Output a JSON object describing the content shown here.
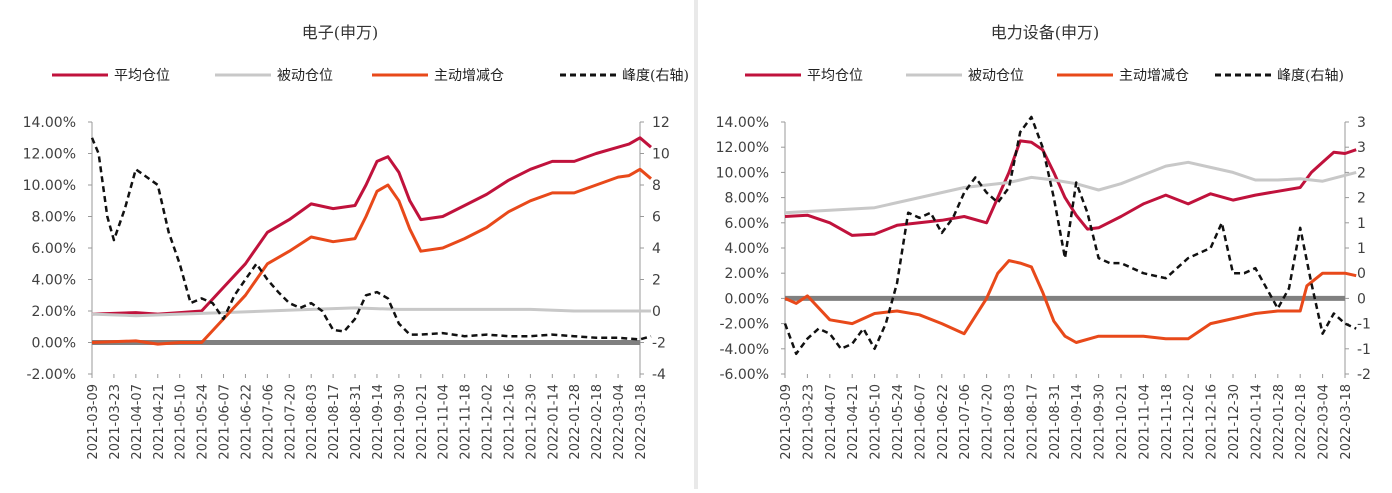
{
  "chart_data": [
    {
      "type": "line",
      "title": "电子(申万)",
      "legend": [
        "平均仓位",
        "被动仓位",
        "主动增减仓",
        "峰度(右轴)"
      ],
      "legend_placement": "top",
      "grid": false,
      "ylim_left": [
        -0.02,
        0.14
      ],
      "ylim_right": [
        -4,
        12
      ],
      "yticks_left": [
        "-2.00%",
        "0.00%",
        "2.00%",
        "4.00%",
        "6.00%",
        "8.00%",
        "10.00%",
        "12.00%",
        "14.00%"
      ],
      "yticks_right": [
        "-4",
        "-2",
        "0",
        "2",
        "4",
        "6",
        "8",
        "10",
        "12"
      ],
      "x_ticks": [
        "2021-03-09",
        "2021-03-23",
        "2021-04-07",
        "2021-04-21",
        "2021-05-10",
        "2021-05-24",
        "2021-06-07",
        "2021-06-22",
        "2021-07-06",
        "2021-07-20",
        "2021-08-03",
        "2021-08-17",
        "2021-08-31",
        "2021-09-14",
        "2021-09-30",
        "2021-10-21",
        "2021-11-04",
        "2021-11-18",
        "2021-12-02",
        "2021-12-16",
        "2021-12-30",
        "2022-01-14",
        "2022-01-28",
        "2022-02-18",
        "2022-03-04",
        "2022-03-18"
      ],
      "series": [
        {
          "name": "平均仓位",
          "axis": "left",
          "color": "#c0123c",
          "t": [
            0,
            2,
            3,
            4,
            5,
            6,
            7,
            8,
            9,
            10,
            11,
            12,
            12.5,
            13,
            13.5,
            14,
            14.5,
            15,
            16,
            17,
            18,
            19,
            20,
            21,
            22,
            23,
            24,
            24.5,
            25,
            25.5
          ],
          "values": [
            0.018,
            0.019,
            0.018,
            0.019,
            0.02,
            0.035,
            0.05,
            0.07,
            0.078,
            0.088,
            0.085,
            0.087,
            0.1,
            0.115,
            0.118,
            0.108,
            0.09,
            0.078,
            0.08,
            0.087,
            0.094,
            0.103,
            0.11,
            0.115,
            0.115,
            0.12,
            0.124,
            0.126,
            0.13,
            0.124
          ]
        },
        {
          "name": "被动仓位",
          "axis": "left",
          "color": "#c8c8c8",
          "t": [
            0,
            2,
            4,
            6,
            8,
            10,
            12,
            14,
            16,
            18,
            20,
            22,
            24,
            25.5
          ],
          "values": [
            0.018,
            0.017,
            0.018,
            0.019,
            0.02,
            0.021,
            0.022,
            0.021,
            0.021,
            0.021,
            0.021,
            0.02,
            0.02,
            0.02
          ]
        },
        {
          "name": "主动增减仓",
          "axis": "left",
          "color": "#e8491a",
          "t": [
            0,
            2,
            3,
            4,
            5,
            6,
            7,
            8,
            9,
            10,
            11,
            12,
            12.5,
            13,
            13.5,
            14,
            14.5,
            15,
            16,
            17,
            18,
            19,
            20,
            21,
            22,
            23,
            24,
            24.5,
            25,
            25.5
          ],
          "values": [
            0.0,
            0.001,
            -0.001,
            0.0,
            0.0,
            0.015,
            0.03,
            0.05,
            0.058,
            0.067,
            0.064,
            0.066,
            0.08,
            0.096,
            0.1,
            0.09,
            0.072,
            0.058,
            0.06,
            0.066,
            0.073,
            0.083,
            0.09,
            0.095,
            0.095,
            0.1,
            0.105,
            0.106,
            0.11,
            0.104
          ]
        },
        {
          "name": "峰度(右轴)",
          "axis": "right",
          "color": "#111111",
          "dashed": true,
          "t": [
            0,
            0.3,
            0.7,
            1.0,
            1.5,
            2.0,
            2.5,
            3.0,
            3.5,
            4.0,
            4.5,
            5.0,
            5.5,
            6.0,
            6.5,
            7.0,
            7.5,
            8.0,
            8.5,
            9.0,
            9.5,
            10.0,
            10.5,
            11.0,
            11.5,
            12.0,
            12.5,
            13.0,
            13.5,
            14.0,
            14.5,
            15.0,
            16.0,
            17.0,
            18.0,
            19.0,
            20.0,
            21.0,
            22.0,
            23.0,
            24.0,
            25.0,
            25.5
          ],
          "values": [
            11,
            10,
            6,
            4.5,
            6.5,
            9,
            8.5,
            8,
            5,
            3,
            0.5,
            0.8,
            0.5,
            -0.5,
            1,
            2,
            3,
            2,
            1.2,
            0.5,
            0.2,
            0.5,
            0,
            -1.2,
            -1.3,
            -0.5,
            1,
            1.2,
            0.8,
            -0.8,
            -1.5,
            -1.5,
            -1.4,
            -1.6,
            -1.5,
            -1.6,
            -1.6,
            -1.5,
            -1.6,
            -1.7,
            -1.7,
            -1.8,
            -1.6
          ]
        }
      ]
    },
    {
      "type": "line",
      "title": "电力设备(申万)",
      "legend": [
        "平均仓位",
        "被动仓位",
        "主动增减仓",
        "峰度(右轴)"
      ],
      "legend_placement": "top",
      "grid": false,
      "ylim_left": [
        -0.06,
        0.14
      ],
      "ylim_right": [
        -2,
        3
      ],
      "yticks_left": [
        "-6.00%",
        "-4.00%",
        "-2.00%",
        "0.00%",
        "2.00%",
        "4.00%",
        "6.00%",
        "8.00%",
        "10.00%",
        "12.00%",
        "14.00%"
      ],
      "yticks_right": [
        "-2",
        "-1",
        "-1",
        "0",
        "0",
        "1",
        "1",
        "2",
        "2",
        "3",
        "3"
      ],
      "x_ticks": [
        "2021-03-09",
        "2021-03-23",
        "2021-04-07",
        "2021-04-21",
        "2021-05-10",
        "2021-05-24",
        "2021-06-07",
        "2021-06-22",
        "2021-07-06",
        "2021-07-20",
        "2021-08-03",
        "2021-08-17",
        "2021-08-31",
        "2021-09-14",
        "2021-09-30",
        "2021-10-21",
        "2021-11-04",
        "2021-11-18",
        "2021-12-02",
        "2021-12-16",
        "2021-12-30",
        "2022-01-14",
        "2022-01-28",
        "2022-02-18",
        "2022-03-04",
        "2022-03-18"
      ],
      "series": [
        {
          "name": "平均仓位",
          "axis": "left",
          "color": "#c0123c",
          "t": [
            0,
            1,
            2,
            3,
            4,
            5,
            6,
            7,
            8,
            9,
            10,
            10.5,
            11,
            11.5,
            12,
            12.5,
            13,
            13.5,
            14,
            15,
            16,
            17,
            18,
            19,
            20,
            21,
            22,
            23,
            23.5,
            24,
            24.5,
            25,
            25.5
          ],
          "values": [
            0.065,
            0.066,
            0.06,
            0.05,
            0.051,
            0.058,
            0.06,
            0.062,
            0.065,
            0.06,
            0.1,
            0.125,
            0.124,
            0.118,
            0.1,
            0.08,
            0.066,
            0.055,
            0.056,
            0.065,
            0.075,
            0.082,
            0.075,
            0.083,
            0.078,
            0.082,
            0.085,
            0.088,
            0.1,
            0.108,
            0.116,
            0.115,
            0.118
          ]
        },
        {
          "name": "被动仓位",
          "axis": "left",
          "color": "#c8c8c8",
          "t": [
            0,
            2,
            4,
            6,
            8,
            10,
            11,
            12,
            13,
            14,
            15,
            16,
            17,
            18,
            19,
            20,
            21,
            22,
            23,
            24,
            25.5
          ],
          "values": [
            0.068,
            0.07,
            0.072,
            0.08,
            0.088,
            0.092,
            0.096,
            0.094,
            0.091,
            0.086,
            0.091,
            0.098,
            0.105,
            0.108,
            0.104,
            0.1,
            0.094,
            0.094,
            0.095,
            0.093,
            0.1
          ]
        },
        {
          "name": "主动增减仓",
          "axis": "left",
          "color": "#e8491a",
          "t": [
            0,
            0.5,
            1,
            2,
            3,
            4,
            5,
            6,
            7,
            8,
            9,
            9.5,
            10,
            10.5,
            11,
            11.5,
            12,
            12.5,
            13,
            14,
            15,
            16,
            17,
            18,
            19,
            20,
            21,
            22,
            23,
            23.3,
            24,
            25,
            25.5
          ],
          "values": [
            0.0,
            -0.004,
            0.002,
            -0.017,
            -0.02,
            -0.012,
            -0.01,
            -0.013,
            -0.02,
            -0.028,
            0.0,
            0.02,
            0.03,
            0.028,
            0.025,
            0.005,
            -0.018,
            -0.03,
            -0.035,
            -0.03,
            -0.03,
            -0.03,
            -0.032,
            -0.032,
            -0.02,
            -0.016,
            -0.012,
            -0.01,
            -0.01,
            0.01,
            0.02,
            0.02,
            0.018
          ]
        },
        {
          "name": "峰度(右轴)",
          "axis": "right",
          "color": "#111111",
          "dashed": true,
          "t": [
            0,
            0.5,
            1,
            1.5,
            2,
            2.5,
            3,
            3.5,
            4,
            4.5,
            5,
            5.5,
            6,
            6.5,
            7,
            7.5,
            8,
            8.5,
            9,
            9.5,
            10,
            10.5,
            11,
            11.5,
            12,
            12.5,
            13,
            13.5,
            14,
            14.5,
            15,
            16,
            17,
            18,
            19,
            19.5,
            20,
            20.5,
            21,
            21.5,
            22,
            22.5,
            23,
            23.5,
            24,
            24.5,
            25,
            25.5
          ],
          "values": [
            -1,
            -1.6,
            -1.3,
            -1.1,
            -1.2,
            -1.5,
            -1.4,
            -1.1,
            -1.5,
            -1,
            -0.2,
            1.2,
            1.1,
            1.2,
            0.8,
            1.1,
            1.6,
            1.9,
            1.6,
            1.4,
            1.7,
            2.8,
            3.1,
            2.5,
            1.5,
            0.3,
            1.8,
            1.2,
            0.3,
            0.2,
            0.2,
            0,
            -0.1,
            0.3,
            0.5,
            1.0,
            0,
            0,
            0.1,
            -0.3,
            -0.7,
            -0.3,
            0.9,
            -0.2,
            -1.2,
            -0.8,
            -1.0,
            -1.1
          ]
        }
      ]
    }
  ]
}
